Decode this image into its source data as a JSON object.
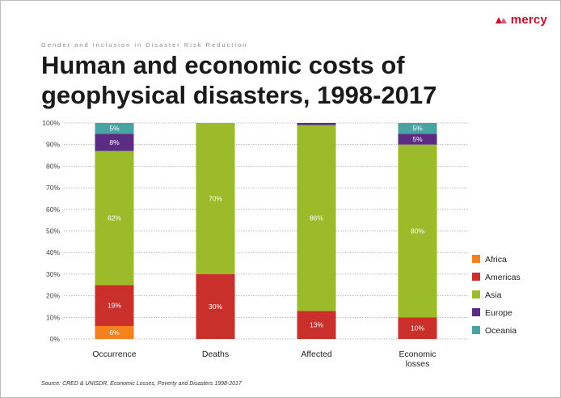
{
  "header": {
    "logo_text": "mercy",
    "kicker": "Gender and Inclusion in Disaster Risk Reduction",
    "title": "Human and economic costs of geophysical disasters, 1998-2017"
  },
  "footer": {
    "source": "Source: CRED & UNISDR, Economic Losses, Poverty and Disasters 1998-2017"
  },
  "chart_data": {
    "type": "bar",
    "stacked": true,
    "percent": true,
    "categories": [
      "Occurrence",
      "Deaths",
      "Affected",
      "Economic losses"
    ],
    "series": [
      {
        "name": "Africa",
        "color": "#f2811e",
        "values": [
          6,
          0,
          0,
          0
        ],
        "labels": [
          "6%",
          "",
          "",
          ""
        ]
      },
      {
        "name": "Americas",
        "color": "#c9302c",
        "values": [
          19,
          30,
          13,
          10
        ],
        "labels": [
          "19%",
          "30%",
          "13%",
          "10%"
        ]
      },
      {
        "name": "Asia",
        "color": "#9bbb2a",
        "values": [
          62,
          70,
          86,
          80
        ],
        "labels": [
          "62%",
          "70%",
          "86%",
          "80%"
        ]
      },
      {
        "name": "Europe",
        "color": "#5b2c83",
        "values": [
          8,
          0,
          1,
          5
        ],
        "labels": [
          "8%",
          "",
          "",
          "5%"
        ]
      },
      {
        "name": "Oceania",
        "color": "#4aa3a3",
        "values": [
          5,
          0,
          0,
          5
        ],
        "labels": [
          "5%",
          "",
          "",
          "5%"
        ]
      }
    ],
    "yticks": [
      "0%",
      "10%",
      "20%",
      "30%",
      "40%",
      "50%",
      "60%",
      "70%",
      "80%",
      "90%",
      "100%"
    ],
    "ylim": [
      0,
      100
    ],
    "grid": true,
    "legend_position": "right"
  }
}
